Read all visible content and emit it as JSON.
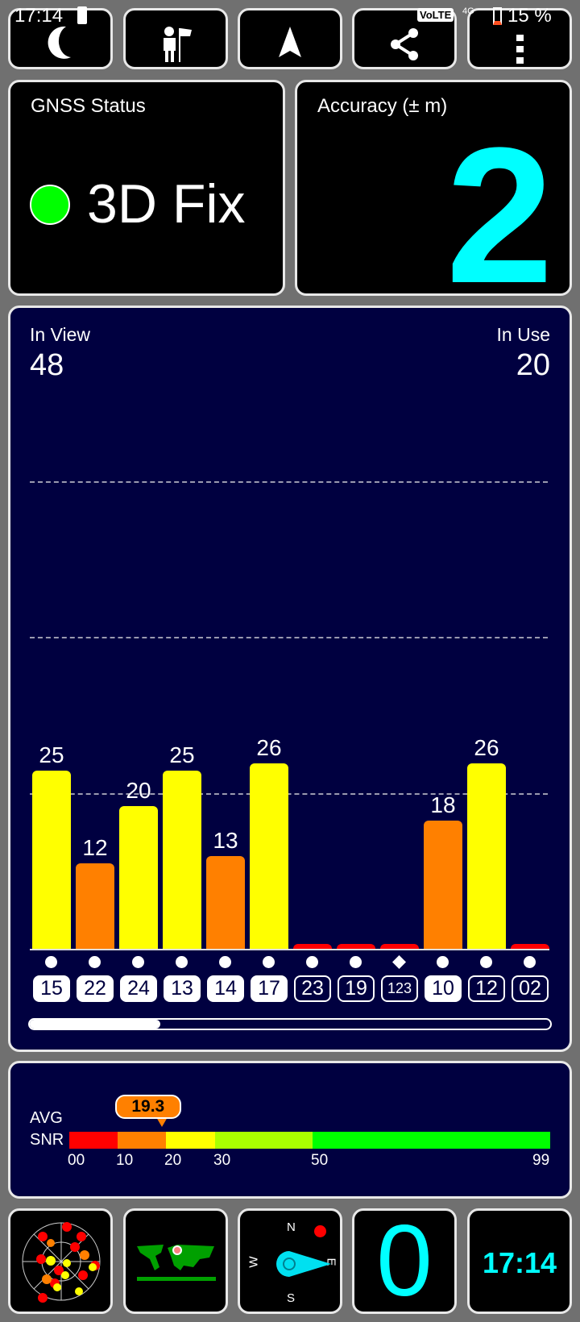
{
  "status_bar": {
    "time": "17:14",
    "battery": "15 %",
    "network": "VoLTE",
    "network_gen": "4G"
  },
  "toolbar": {
    "buttons": [
      {
        "name": "night-mode",
        "icon": "moon-icon"
      },
      {
        "name": "waypoint",
        "icon": "person-flag-icon"
      },
      {
        "name": "navigation",
        "icon": "navigation-arrow-icon"
      },
      {
        "name": "share",
        "icon": "share-icon"
      },
      {
        "name": "more",
        "icon": "more-vert-icon"
      }
    ]
  },
  "gnss_status": {
    "title": "GNSS Status",
    "value": "3D Fix",
    "indicator_color": "#00ff00"
  },
  "accuracy": {
    "title": "Accuracy (± m)",
    "value": "2",
    "color": "#00ffff"
  },
  "satellites": {
    "in_view_label": "In View",
    "in_view": "48",
    "in_use_label": "In Use",
    "in_use": "20",
    "scroll_fraction": 0.25
  },
  "chart_data": {
    "type": "bar",
    "categories": [
      "15",
      "22",
      "24",
      "13",
      "14",
      "17",
      "23",
      "19",
      "123",
      "10",
      "12",
      "02"
    ],
    "values": [
      25,
      12,
      20,
      25,
      13,
      26,
      0,
      0,
      0,
      18,
      26,
      0
    ],
    "used": [
      true,
      true,
      true,
      true,
      true,
      true,
      false,
      false,
      false,
      true,
      false,
      false
    ],
    "markers": [
      "circle",
      "circle",
      "circle",
      "circle",
      "circle",
      "circle",
      "circle",
      "circle",
      "diamond",
      "circle",
      "circle",
      "circle"
    ]
  },
  "snr": {
    "label_line1": "AVG",
    "label_line2": "SNR",
    "avg": "19.3",
    "avg_value": 19.3,
    "ticks": [
      "00",
      "10",
      "20",
      "30",
      "50",
      "99"
    ],
    "colors": [
      "#ff0000",
      "#ff8000",
      "#ffff00",
      "#aaff00",
      "#00ff00"
    ]
  },
  "bottom": {
    "compass": {
      "n": "N",
      "s": "S",
      "e": "E",
      "w": "W"
    },
    "speed": "0",
    "clock": "17:14"
  }
}
